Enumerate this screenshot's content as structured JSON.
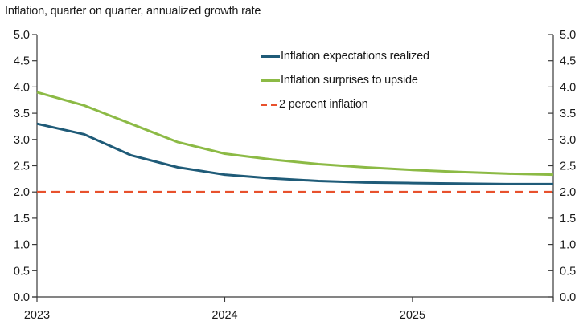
{
  "chart_data": {
    "type": "line",
    "title": "Inflation, quarter on quarter, annualized growth rate",
    "xlabel": "",
    "ylabel": "",
    "x": [
      "2023Q1",
      "2023Q2",
      "2023Q3",
      "2023Q4",
      "2024Q1",
      "2024Q2",
      "2024Q3",
      "2024Q4",
      "2025Q1",
      "2025Q2",
      "2025Q3",
      "2025Q4"
    ],
    "x_tick_labels": [
      "2023",
      "2024",
      "2025"
    ],
    "x_tick_indices": [
      0,
      4,
      8
    ],
    "ylim": [
      0.0,
      5.0
    ],
    "ytick_step": 0.5,
    "y_tick_labels": [
      "0.0",
      "0.5",
      "1.0",
      "1.5",
      "2.0",
      "2.5",
      "3.0",
      "3.5",
      "4.0",
      "4.5",
      "5.0"
    ],
    "y_axis_sides": [
      "left",
      "right"
    ],
    "grid": false,
    "legend_position": "inside-upper-middle",
    "series": [
      {
        "name": "Inflation expectations realized",
        "color": "#1f5b78",
        "style": "solid",
        "values": [
          3.3,
          3.1,
          2.7,
          2.47,
          2.33,
          2.26,
          2.21,
          2.18,
          2.17,
          2.16,
          2.15,
          2.15
        ]
      },
      {
        "name": "Inflation surprises to upside",
        "color": "#8cba45",
        "style": "solid",
        "values": [
          3.9,
          3.65,
          3.3,
          2.95,
          2.73,
          2.62,
          2.53,
          2.47,
          2.42,
          2.38,
          2.35,
          2.33
        ]
      },
      {
        "name": "2 percent inflation",
        "color": "#e8512d",
        "style": "dashed",
        "values": [
          2.0,
          2.0,
          2.0,
          2.0,
          2.0,
          2.0,
          2.0,
          2.0,
          2.0,
          2.0,
          2.0,
          2.0
        ]
      }
    ],
    "axis_color": "#3a3a3a",
    "text_color": "#1a1a1a"
  }
}
